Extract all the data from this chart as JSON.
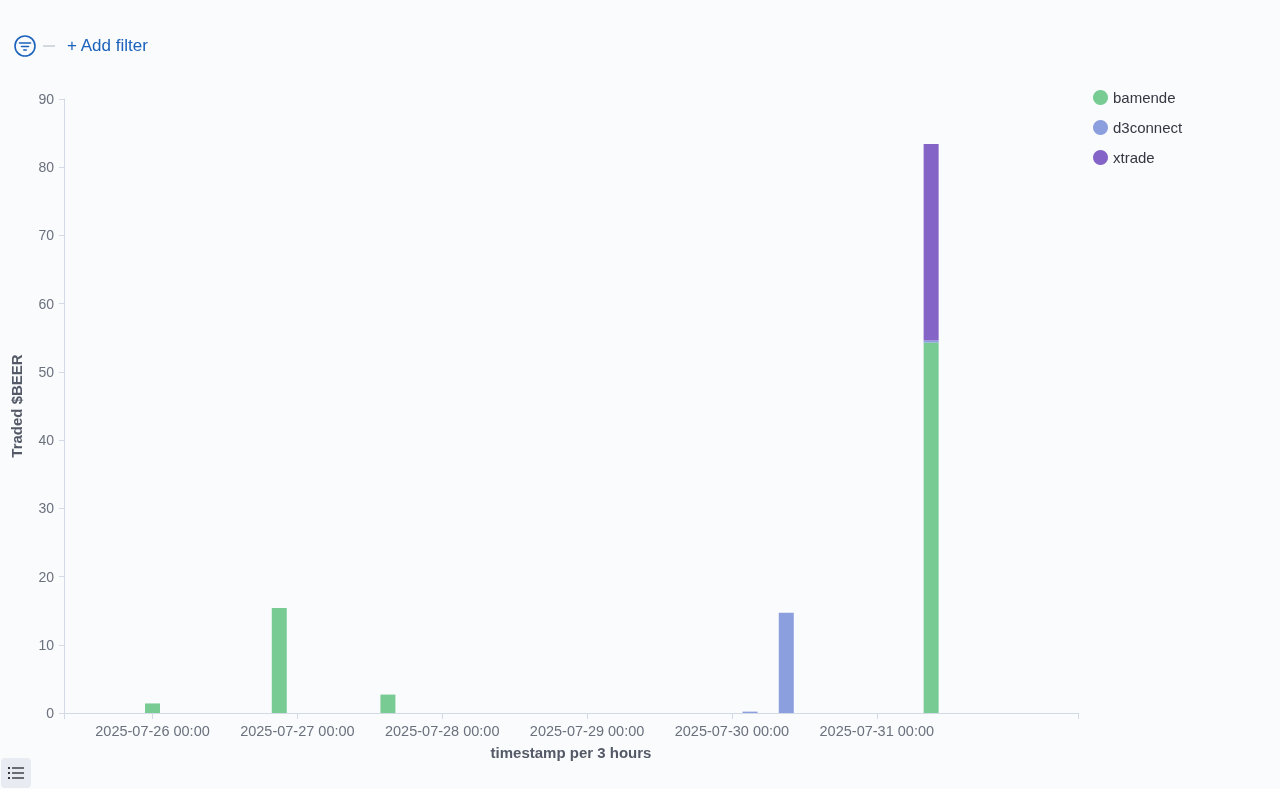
{
  "chart_data": {
    "type": "bar",
    "stacked": true,
    "xlabel": "timestamp per 3 hours",
    "ylabel": "Traded $BEER",
    "annotations": [
      "+ Add filter"
    ],
    "x": [
      "2025-07-26T00:00",
      "2025-07-26T21:00",
      "2025-07-27T15:00",
      "2025-07-30T03:00",
      "2025-07-30T09:00",
      "2025-07-31T09:00"
    ],
    "series": [
      {
        "name": "bamende",
        "color": "#77cb93",
        "values": [
          1.4,
          15.4,
          2.7,
          null,
          null,
          54.3
        ]
      },
      {
        "name": "d3connect",
        "color": "#8b9fdf",
        "values": [
          null,
          null,
          null,
          0.2,
          14.7,
          0.3
        ]
      },
      {
        "name": "xtrade",
        "color": "#8464c6",
        "values": [
          null,
          null,
          null,
          null,
          null,
          28.8
        ]
      }
    ],
    "xlim": [
      "2025-07-25T09:20",
      "2025-08-01T09:20"
    ],
    "xticks": [
      {
        "value": "2025-07-25T09:20",
        "label": null
      },
      {
        "value": "2025-07-26T00:00",
        "label": "2025-07-26 00:00"
      },
      {
        "value": "2025-07-27T00:00",
        "label": "2025-07-27 00:00"
      },
      {
        "value": "2025-07-28T00:00",
        "label": "2025-07-28 00:00"
      },
      {
        "value": "2025-07-29T00:00",
        "label": "2025-07-29 00:00"
      },
      {
        "value": "2025-07-30T00:00",
        "label": "2025-07-30 00:00"
      },
      {
        "value": "2025-07-31T00:00",
        "label": "2025-07-31 00:00"
      },
      {
        "value": "2025-08-01T09:20",
        "label": null
      }
    ],
    "ylim": [
      0,
      90
    ],
    "yticks": [
      0,
      10,
      20,
      30,
      40,
      50,
      60,
      70,
      80,
      90
    ],
    "grid": false,
    "legend": "top right"
  }
}
